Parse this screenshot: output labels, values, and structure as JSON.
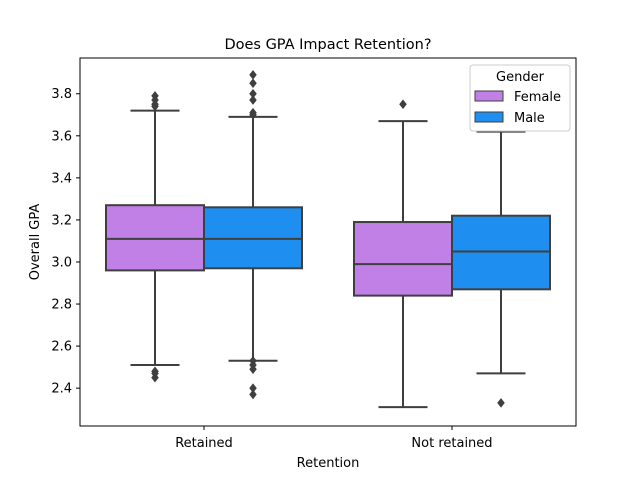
{
  "chart_data": {
    "type": "box",
    "title": "Does GPA Impact Retention?",
    "xlabel": "Retention",
    "ylabel": "Overall GPA",
    "categories": [
      "Retained",
      "Not retained"
    ],
    "ylim": [
      2.22,
      3.97
    ],
    "yticks": [
      "2.4",
      "2.6",
      "2.8",
      "3.0",
      "3.2",
      "3.4",
      "3.6",
      "3.8"
    ],
    "grid": false,
    "legend": {
      "title": "Gender",
      "placement": "top-right",
      "entries": [
        {
          "label": "Female",
          "color": "#c080e6"
        },
        {
          "label": "Male",
          "color": "#1e8ff0"
        }
      ]
    },
    "series": [
      {
        "name": "Female",
        "color": "#c080e6",
        "boxes": [
          {
            "category": "Retained",
            "whislo": 2.51,
            "q1": 2.96,
            "median": 3.11,
            "q3": 3.27,
            "whishi": 3.72,
            "fliers": [
              2.45,
              2.47,
              2.48,
              3.74,
              3.75,
              3.77,
              3.79
            ]
          },
          {
            "category": "Not retained",
            "whislo": 2.31,
            "q1": 2.84,
            "median": 2.99,
            "q3": 3.19,
            "whishi": 3.67,
            "fliers": [
              3.75
            ]
          }
        ]
      },
      {
        "name": "Male",
        "color": "#1e8ff0",
        "boxes": [
          {
            "category": "Retained",
            "whislo": 2.53,
            "q1": 2.97,
            "median": 3.11,
            "q3": 3.26,
            "whishi": 3.69,
            "fliers": [
              2.37,
              2.4,
              2.49,
              2.51,
              2.53,
              3.7,
              3.71,
              3.77,
              3.8,
              3.85,
              3.89
            ]
          },
          {
            "category": "Not retained",
            "whislo": 2.47,
            "q1": 2.87,
            "median": 3.05,
            "q3": 3.22,
            "whishi": 3.62,
            "fliers": [
              2.33
            ]
          }
        ]
      }
    ]
  }
}
